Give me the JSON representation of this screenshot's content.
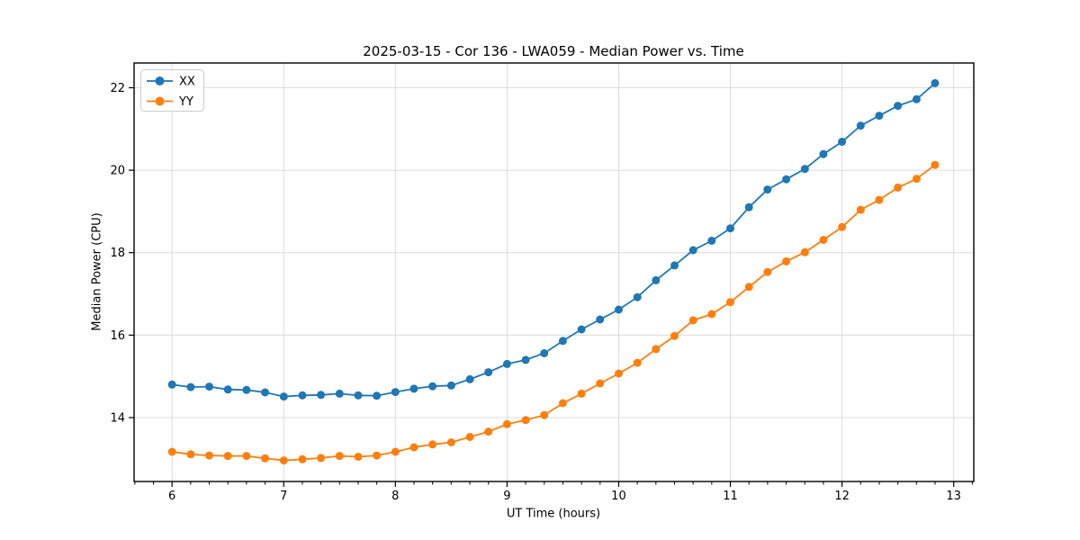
{
  "page": {
    "background": "#ffffff"
  },
  "chart": {
    "title": "2025-03-15 - Cor 136 - LWA059 - Median Power vs. Time",
    "xlabel": "UT Time (hours)",
    "ylabel": "Median Power (CPU)"
  },
  "chart_data": {
    "type": "line",
    "title": "2025-03-15 - Cor 136 - LWA059 - Median Power vs. Time",
    "xlabel": "UT Time (hours)",
    "ylabel": "Median Power (CPU)",
    "x": [
      6.0,
      6.167,
      6.333,
      6.5,
      6.667,
      6.833,
      7.0,
      7.167,
      7.333,
      7.5,
      7.667,
      7.833,
      8.0,
      8.167,
      8.333,
      8.5,
      8.667,
      8.833,
      9.0,
      9.167,
      9.333,
      9.5,
      9.667,
      9.833,
      10.0,
      10.167,
      10.333,
      10.5,
      10.667,
      10.833,
      11.0,
      11.167,
      11.333,
      11.5,
      11.667,
      11.833,
      12.0,
      12.167,
      12.333,
      12.5,
      12.667,
      12.833
    ],
    "series": [
      {
        "name": "XX",
        "color": "#1f77b4",
        "values": [
          14.8,
          14.74,
          14.75,
          14.68,
          14.67,
          14.61,
          14.51,
          14.54,
          14.55,
          14.58,
          14.54,
          14.53,
          14.62,
          14.7,
          14.76,
          14.78,
          14.93,
          15.1,
          15.3,
          15.4,
          15.56,
          15.86,
          16.14,
          16.38,
          16.62,
          16.92,
          17.33,
          17.69,
          18.06,
          18.29,
          18.59,
          19.1,
          19.53,
          19.78,
          20.03,
          20.39,
          20.69,
          21.08,
          21.32,
          21.56,
          21.72,
          22.11
        ]
      },
      {
        "name": "YY",
        "color": "#ff7f0e",
        "values": [
          13.17,
          13.11,
          13.08,
          13.07,
          13.07,
          13.01,
          12.96,
          12.99,
          13.02,
          13.07,
          13.05,
          13.08,
          13.17,
          13.28,
          13.35,
          13.4,
          13.53,
          13.66,
          13.84,
          13.94,
          14.06,
          14.35,
          14.58,
          14.83,
          15.07,
          15.33,
          15.66,
          15.98,
          16.36,
          16.51,
          16.8,
          17.17,
          17.53,
          17.79,
          18.01,
          18.31,
          18.62,
          19.04,
          19.28,
          19.58,
          19.79,
          20.13
        ]
      }
    ],
    "xlim": [
      5.66,
      13.18
    ],
    "ylim": [
      12.45,
      22.6
    ],
    "xticks": [
      6,
      7,
      8,
      9,
      10,
      11,
      12,
      13
    ],
    "yticks": [
      14,
      16,
      18,
      20,
      22
    ],
    "minor_x_step": 0.1666667,
    "grid": true,
    "grid_color": "#dcdcdc",
    "axis_color": "#000000",
    "legend_position": "upper-left",
    "legend_labels": [
      "XX",
      "YY"
    ],
    "marker": "circle"
  }
}
